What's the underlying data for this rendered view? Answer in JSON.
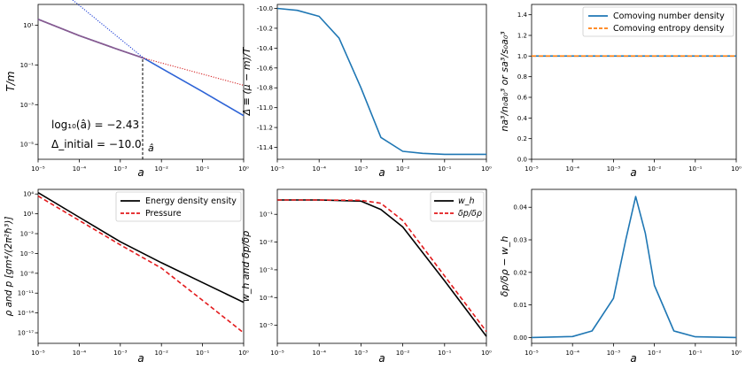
{
  "chart_data": [
    {
      "type": "line",
      "xlabel": "a",
      "ylabel": "T/m",
      "xscale": "log",
      "yscale": "log",
      "xlim": [
        "1e-5",
        "1"
      ],
      "xticks": [
        "10⁻⁵",
        "10⁻⁴",
        "10⁻³",
        "10⁻²",
        "10⁻¹",
        "10⁰"
      ],
      "yticks": [
        "10¹",
        "10⁻¹",
        "10⁻³",
        "10⁻⁵"
      ],
      "annotations": [
        "log₁₀(â) = −2.43",
        "Δ_initial = −10.0",
        "â"
      ],
      "vline_x": 0.0037,
      "series": [
        {
          "style": "solid",
          "color": "#2d63d6",
          "x": [
            1e-05,
            0.0001,
            0.001,
            0.0037,
            0.01,
            0.1,
            1
          ],
          "y": [
            20,
            3.0,
            0.55,
            0.22,
            0.068,
            0.0045,
            0.00028
          ]
        },
        {
          "style": "solid",
          "color": "#8c5a8c",
          "x": [
            1e-05,
            0.0001,
            0.001,
            0.0037
          ],
          "y": [
            20,
            3.0,
            0.55,
            0.22
          ]
        },
        {
          "style": "dotted",
          "color": "#1f3fd6",
          "x": [
            1e-05,
            0.0037
          ],
          "y": [
            5000,
            0.22
          ]
        },
        {
          "style": "dotted",
          "color": "#d62728",
          "x": [
            0.0037,
            1
          ],
          "y": [
            0.22,
            0.0095
          ]
        }
      ]
    },
    {
      "type": "line",
      "xlabel": "a",
      "ylabel": "Δ ≡ (μ − m)/T",
      "xscale": "log",
      "ylim": [
        -11.5,
        -9.97
      ],
      "xticks": [
        "10⁻⁵",
        "10⁻⁴",
        "10⁻³",
        "10⁻²",
        "10⁻¹",
        "10⁰"
      ],
      "yticks": [
        "-10.0",
        "-10.2",
        "-10.4",
        "-10.6",
        "-10.8",
        "-11.0",
        "-11.2",
        "-11.4"
      ],
      "series": [
        {
          "color": "#1f77b4",
          "x": [
            1e-05,
            3e-05,
            0.0001,
            0.0003,
            0.001,
            0.003,
            0.01,
            0.03,
            0.1,
            1
          ],
          "y": [
            -10.0,
            -10.02,
            -10.08,
            -10.3,
            -10.8,
            -11.3,
            -11.44,
            -11.46,
            -11.47,
            -11.47
          ]
        }
      ]
    },
    {
      "type": "line",
      "xlabel": "a",
      "ylabel": "na³/n₀a₀³ or sa³/s₀a₀³",
      "xscale": "log",
      "ylim": [
        0,
        1.5
      ],
      "xticks": [
        "10⁻⁵",
        "10⁻⁴",
        "10⁻³",
        "10⁻²",
        "10⁻¹",
        "10⁰"
      ],
      "yticks": [
        "0.0",
        "0.2",
        "0.4",
        "0.6",
        "0.8",
        "1.0",
        "1.2",
        "1.4"
      ],
      "legend": "top-right",
      "series": [
        {
          "name": "Comoving number density",
          "style": "solid",
          "color": "#1f77b4",
          "x": [
            1e-05,
            1
          ],
          "y": [
            1.0,
            1.0
          ]
        },
        {
          "name": "Comoving entropy density",
          "style": "dashed",
          "color": "#ff7f0e",
          "x": [
            1e-05,
            1
          ],
          "y": [
            1.0,
            1.0
          ]
        }
      ]
    },
    {
      "type": "line",
      "xlabel": "a",
      "ylabel": "ρ and p [gm⁴/(2π²ħ³)]",
      "xscale": "log",
      "yscale": "log",
      "xticks": [
        "10⁻⁵",
        "10⁻⁴",
        "10⁻³",
        "10⁻²",
        "10⁻¹",
        "10⁰"
      ],
      "yticks": [
        "10⁴",
        "10¹",
        "10⁻²",
        "10⁻⁵",
        "10⁻⁸",
        "10⁻¹¹",
        "10⁻¹⁴",
        "10⁻¹⁷"
      ],
      "legend": "top-right",
      "series": [
        {
          "name": "Energy density ensity",
          "style": "solid",
          "color": "#000000",
          "x": [
            1e-05,
            0.0001,
            0.001,
            0.01,
            0.1,
            1
          ],
          "y": [
            16000.0,
            3.0,
            0.0006,
            4e-07,
            4e-10,
            4e-13
          ]
        },
        {
          "name": "Pressure",
          "style": "dashed",
          "color": "#e31a1c",
          "x": [
            1e-05,
            0.0001,
            0.001,
            0.01,
            0.1,
            1
          ],
          "y": [
            5000.0,
            1.0,
            0.0002,
            6e-08,
            8e-13,
            1e-17
          ]
        }
      ]
    },
    {
      "type": "line",
      "xlabel": "a",
      "ylabel": "w_h and δp/δρ",
      "xscale": "log",
      "yscale": "log",
      "xticks": [
        "10⁻⁵",
        "10⁻⁴",
        "10⁻³",
        "10⁻²",
        "10⁻¹",
        "10⁰"
      ],
      "yticks": [
        "10⁻¹",
        "10⁻²",
        "10⁻³",
        "10⁻⁴",
        "10⁻⁵"
      ],
      "legend": "top-right",
      "series": [
        {
          "name": "w_h",
          "style": "solid",
          "color": "#000000",
          "x": [
            1e-05,
            0.0001,
            0.001,
            0.003,
            0.01,
            0.1,
            1
          ],
          "y": [
            0.33,
            0.33,
            0.3,
            0.15,
            0.035,
            0.0004,
            4e-06
          ]
        },
        {
          "name": "δp/δρ",
          "style": "dashed",
          "color": "#e31a1c",
          "x": [
            1e-05,
            0.0001,
            0.001,
            0.003,
            0.01,
            0.1,
            1
          ],
          "y": [
            0.33,
            0.33,
            0.32,
            0.25,
            0.06,
            0.0006,
            6e-06
          ]
        }
      ]
    },
    {
      "type": "line",
      "xlabel": "a",
      "ylabel": "δp/δρ − w_h",
      "xscale": "log",
      "xticks": [
        "10⁻⁵",
        "10⁻⁴",
        "10⁻³",
        "10⁻²",
        "10⁻¹",
        "10⁰"
      ],
      "yticks": [
        "0.00",
        "0.01",
        "0.02",
        "0.03",
        "0.04"
      ],
      "series": [
        {
          "color": "#1f77b4",
          "x": [
            1e-05,
            0.0001,
            0.0003,
            0.001,
            0.002,
            0.0035,
            0.006,
            0.01,
            0.03,
            0.1,
            1
          ],
          "y": [
            0,
            0.0003,
            0.002,
            0.012,
            0.03,
            0.0433,
            0.032,
            0.016,
            0.002,
            0.0002,
            0
          ]
        }
      ]
    }
  ]
}
